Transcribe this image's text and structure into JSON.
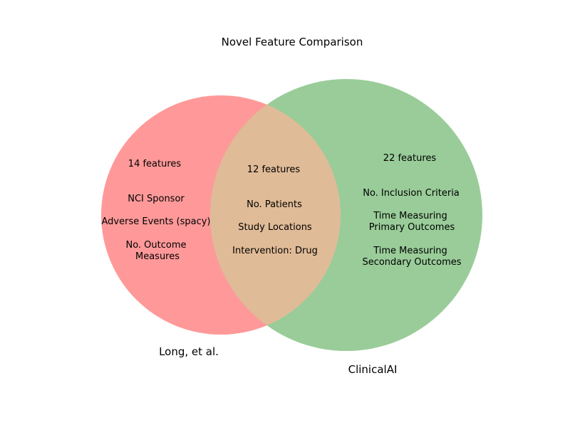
{
  "title": "Novel Feature Comparison",
  "colors": {
    "left_only": "#ff9999",
    "right_only": "#99cc99",
    "overlap": "#e0bb97"
  },
  "sets": {
    "left": {
      "label": "Long, et al.",
      "count_text": "14 features",
      "items": [
        "NCI Sponsor",
        "Adverse Events (spacy)",
        "No. Outcome",
        "Measures"
      ]
    },
    "right": {
      "label": "ClinicalAI",
      "count_text": "22 features",
      "items": [
        "No. Inclusion Criteria",
        "Time Measuring",
        "Primary Outcomes",
        "Time Measuring",
        "Secondary Outcomes"
      ]
    },
    "overlap": {
      "count_text": "12 features",
      "items": [
        "No. Patients",
        "Study Locations",
        "Intervention: Drug"
      ]
    }
  }
}
